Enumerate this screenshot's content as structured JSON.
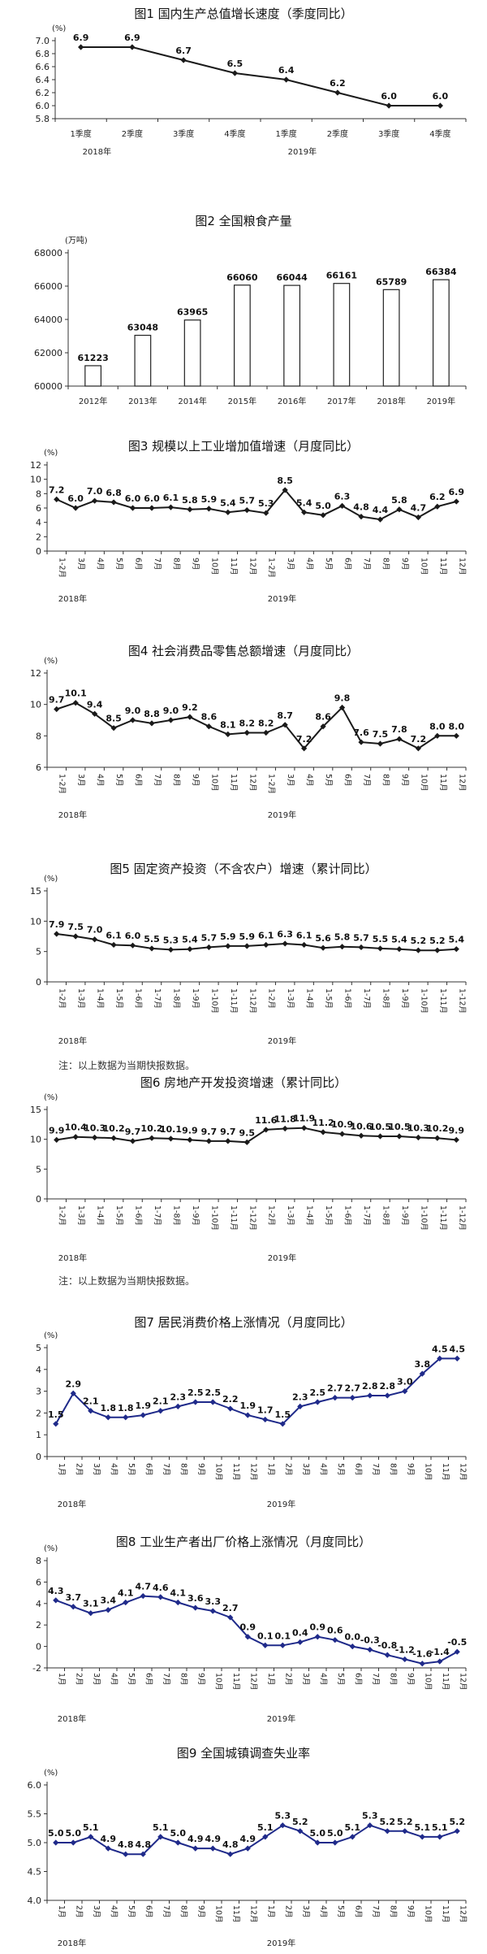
{
  "charts": [
    {
      "title": "图1  国内生产总值增长速度（季度同比）",
      "chart_data": {
        "type": "line",
        "unit_label": "(%)",
        "categories": [
          "1季度",
          "2季度",
          "3季度",
          "4季度",
          "1季度",
          "2季度",
          "3季度",
          "4季度"
        ],
        "year_labels": [
          {
            "text": "2018年",
            "at": 0
          },
          {
            "text": "2019年",
            "at": 4
          }
        ],
        "values": [
          6.9,
          6.9,
          6.7,
          6.5,
          6.4,
          6.2,
          6.0,
          6.0
        ],
        "ylim": [
          5.8,
          7.0
        ],
        "yticks": [
          5.8,
          6.0,
          6.2,
          6.4,
          6.6,
          6.8,
          7.0
        ],
        "ytick_decimals": 1,
        "grid": false,
        "color": "#1a1a1a",
        "xtick_style": "horizontal"
      }
    },
    {
      "title": "图2  全国粮食产量",
      "chart_data": {
        "type": "bar",
        "unit_label": "(万吨)",
        "categories": [
          "2012年",
          "2013年",
          "2014年",
          "2015年",
          "2016年",
          "2017年",
          "2018年",
          "2019年"
        ],
        "values": [
          61223,
          63048,
          63965,
          66060,
          66044,
          66161,
          65789,
          66384
        ],
        "ylim": [
          60000,
          68000
        ],
        "yticks": [
          60000,
          62000,
          64000,
          66000,
          68000
        ],
        "ytick_decimals": 0,
        "grid": false,
        "color": "#1a1a1a"
      }
    },
    {
      "title": "图3  规模以上工业增加值增速（月度同比）",
      "chart_data": {
        "type": "line",
        "unit_label": "(%)",
        "categories": [
          "1-2月",
          "3月",
          "4月",
          "5月",
          "6月",
          "7月",
          "8月",
          "9月",
          "10月",
          "11月",
          "12月",
          "1-2月",
          "3月",
          "4月",
          "5月",
          "6月",
          "7月",
          "8月",
          "9月",
          "10月",
          "11月",
          "12月"
        ],
        "year_labels": [
          {
            "text": "2018年",
            "at": 0
          },
          {
            "text": "2019年",
            "at": 11
          }
        ],
        "values": [
          7.2,
          6.0,
          7.0,
          6.8,
          6.0,
          6.0,
          6.1,
          5.8,
          5.9,
          5.4,
          5.7,
          5.3,
          8.5,
          5.4,
          5.0,
          6.3,
          4.8,
          4.4,
          5.8,
          4.7,
          6.2,
          6.9
        ],
        "ylim": [
          0,
          12
        ],
        "yticks": [
          0,
          2,
          4,
          6,
          8,
          10,
          12
        ],
        "ytick_decimals": 0,
        "grid": false,
        "color": "#1a1a1a",
        "xtick_style": "vertical"
      }
    },
    {
      "title": "图4  社会消费品零售总额增速（月度同比）",
      "chart_data": {
        "type": "line",
        "unit_label": "(%)",
        "categories": [
          "1-2月",
          "3月",
          "4月",
          "5月",
          "6月",
          "7月",
          "8月",
          "9月",
          "10月",
          "11月",
          "12月",
          "1-2月",
          "3月",
          "4月",
          "5月",
          "6月",
          "7月",
          "8月",
          "9月",
          "10月",
          "11月",
          "12月"
        ],
        "year_labels": [
          {
            "text": "2018年",
            "at": 0
          },
          {
            "text": "2019年",
            "at": 11
          }
        ],
        "values": [
          9.7,
          10.1,
          9.4,
          8.5,
          9.0,
          8.8,
          9.0,
          9.2,
          8.6,
          8.1,
          8.2,
          8.2,
          8.7,
          7.2,
          8.6,
          9.8,
          7.6,
          7.5,
          7.8,
          7.2,
          8.0,
          8.0
        ],
        "ylim": [
          6,
          12
        ],
        "yticks": [
          6,
          8,
          10,
          12
        ],
        "ytick_decimals": 0,
        "grid": false,
        "color": "#1a1a1a",
        "xtick_style": "vertical"
      }
    },
    {
      "title": "图5  固定资产投资（不含农户）增速（累计同比）",
      "note": "注：以上数据为当期快报数据。",
      "chart_data": {
        "type": "line",
        "unit_label": "(%)",
        "categories": [
          "1-2月",
          "1-3月",
          "1-4月",
          "1-5月",
          "1-6月",
          "1-7月",
          "1-8月",
          "1-9月",
          "1-10月",
          "1-11月",
          "1-12月",
          "1-2月",
          "1-3月",
          "1-4月",
          "1-5月",
          "1-6月",
          "1-7月",
          "1-8月",
          "1-9月",
          "1-10月",
          "1-11月",
          "1-12月"
        ],
        "year_labels": [
          {
            "text": "2018年",
            "at": 0
          },
          {
            "text": "2019年",
            "at": 11
          }
        ],
        "values": [
          7.9,
          7.5,
          7.0,
          6.1,
          6.0,
          5.5,
          5.3,
          5.4,
          5.7,
          5.9,
          5.9,
          6.1,
          6.3,
          6.1,
          5.6,
          5.8,
          5.7,
          5.5,
          5.4,
          5.2,
          5.2,
          5.4
        ],
        "ylim": [
          0,
          15
        ],
        "yticks": [
          0,
          5,
          10,
          15
        ],
        "ytick_decimals": 0,
        "grid": false,
        "color": "#1a1a1a",
        "xtick_style": "vertical"
      }
    },
    {
      "title": "图6  房地产开发投资增速（累计同比）",
      "note": "注：以上数据为当期快报数据。",
      "chart_data": {
        "type": "line",
        "unit_label": "(%)",
        "categories": [
          "1-2月",
          "1-3月",
          "1-4月",
          "1-5月",
          "1-6月",
          "1-7月",
          "1-8月",
          "1-9月",
          "1-10月",
          "1-11月",
          "1-12月",
          "1-2月",
          "1-3月",
          "1-4月",
          "1-5月",
          "1-6月",
          "1-7月",
          "1-8月",
          "1-9月",
          "1-10月",
          "1-11月",
          "1-12月"
        ],
        "year_labels": [
          {
            "text": "2018年",
            "at": 0
          },
          {
            "text": "2019年",
            "at": 11
          }
        ],
        "values": [
          9.9,
          10.4,
          10.3,
          10.2,
          9.7,
          10.2,
          10.1,
          9.9,
          9.7,
          9.7,
          9.5,
          11.6,
          11.8,
          11.9,
          11.2,
          10.9,
          10.6,
          10.5,
          10.5,
          10.3,
          10.2,
          9.9
        ],
        "ylim": [
          0,
          15
        ],
        "yticks": [
          0,
          5,
          10,
          15
        ],
        "ytick_decimals": 0,
        "grid": false,
        "color": "#1a1a1a",
        "xtick_style": "vertical"
      }
    },
    {
      "title": "图7  居民消费价格上涨情况（月度同比）",
      "chart_data": {
        "type": "line",
        "unit_label": "(%)",
        "categories": [
          "1月",
          "2月",
          "3月",
          "4月",
          "5月",
          "6月",
          "7月",
          "8月",
          "9月",
          "10月",
          "11月",
          "12月",
          "1月",
          "2月",
          "3月",
          "4月",
          "5月",
          "6月",
          "7月",
          "8月",
          "9月",
          "10月",
          "11月",
          "12月"
        ],
        "year_labels": [
          {
            "text": "2018年",
            "at": 0
          },
          {
            "text": "2019年",
            "at": 12
          }
        ],
        "values": [
          1.5,
          2.9,
          2.1,
          1.8,
          1.8,
          1.9,
          2.1,
          2.3,
          2.5,
          2.5,
          2.2,
          1.9,
          1.7,
          1.5,
          2.3,
          2.5,
          2.7,
          2.7,
          2.8,
          2.8,
          3.0,
          3.8,
          4.5,
          4.5
        ],
        "ylim": [
          0,
          5
        ],
        "yticks": [
          0,
          1,
          2,
          3,
          4,
          5
        ],
        "ytick_decimals": 0,
        "grid": false,
        "color": "#1f2a8a",
        "xtick_style": "vertical"
      }
    },
    {
      "title": "图8  工业生产者出厂价格上涨情况（月度同比）",
      "chart_data": {
        "type": "line",
        "unit_label": "(%)",
        "categories": [
          "1月",
          "2月",
          "3月",
          "4月",
          "5月",
          "6月",
          "7月",
          "8月",
          "9月",
          "10月",
          "11月",
          "12月",
          "1月",
          "2月",
          "3月",
          "4月",
          "5月",
          "6月",
          "7月",
          "8月",
          "9月",
          "10月",
          "11月",
          "12月"
        ],
        "year_labels": [
          {
            "text": "2018年",
            "at": 0
          },
          {
            "text": "2019年",
            "at": 12
          }
        ],
        "values": [
          4.3,
          3.7,
          3.1,
          3.4,
          4.1,
          4.7,
          4.6,
          4.1,
          3.6,
          3.3,
          2.7,
          0.9,
          0.1,
          0.1,
          0.4,
          0.9,
          0.6,
          0.0,
          -0.3,
          -0.8,
          -1.2,
          -1.6,
          -1.4,
          -0.5
        ],
        "ylim": [
          -2,
          8
        ],
        "yticks": [
          -2,
          0,
          2,
          4,
          6,
          8
        ],
        "ytick_decimals": 0,
        "grid": false,
        "color": "#1f2a8a",
        "xtick_style": "vertical"
      }
    },
    {
      "title": "图9  全国城镇调查失业率",
      "chart_data": {
        "type": "line",
        "unit_label": "(%)",
        "categories": [
          "1月",
          "2月",
          "3月",
          "4月",
          "5月",
          "6月",
          "7月",
          "8月",
          "9月",
          "10月",
          "11月",
          "12月",
          "1月",
          "2月",
          "3月",
          "4月",
          "5月",
          "6月",
          "7月",
          "8月",
          "9月",
          "10月",
          "11月",
          "12月"
        ],
        "year_labels": [
          {
            "text": "2018年",
            "at": 0
          },
          {
            "text": "2019年",
            "at": 12
          }
        ],
        "values": [
          5.0,
          5.0,
          5.1,
          4.9,
          4.8,
          4.8,
          5.1,
          5.0,
          4.9,
          4.9,
          4.8,
          4.9,
          5.1,
          5.3,
          5.2,
          5.0,
          5.0,
          5.1,
          5.3,
          5.2,
          5.2,
          5.1,
          5.1,
          5.2
        ],
        "ylim": [
          4.0,
          6.0
        ],
        "yticks": [
          4.0,
          4.5,
          5.0,
          5.5,
          6.0
        ],
        "ytick_decimals": 1,
        "grid": false,
        "color": "#1f2a8a",
        "xtick_style": "vertical"
      }
    }
  ]
}
